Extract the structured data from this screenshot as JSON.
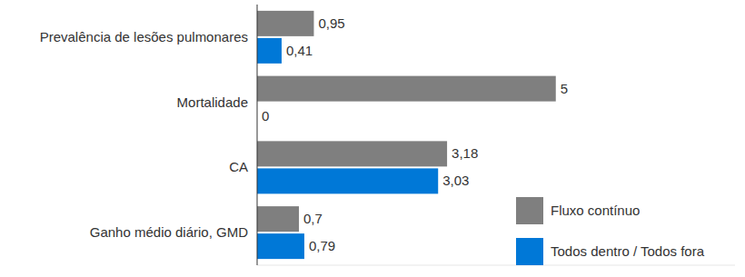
{
  "chart_data": {
    "type": "bar",
    "orientation": "horizontal",
    "categories": [
      "Prevalência de lesões pulmonares",
      "Mortalidade",
      "CA",
      "Ganho médio diário, GMD"
    ],
    "series": [
      {
        "name": "Fluxo contínuo",
        "color": "#7f7f7f",
        "values": [
          0.95,
          5,
          3.18,
          0.7
        ],
        "value_labels": [
          "0,95",
          "5",
          "3,18",
          "0,7"
        ]
      },
      {
        "name": "Todos dentro / Todos fora",
        "color": "#0078d7",
        "values": [
          0.41,
          0,
          3.03,
          0.79
        ],
        "value_labels": [
          "0,41",
          "0",
          "3,03",
          "0,79"
        ]
      }
    ],
    "xlim": [
      0,
      8
    ],
    "data_labels": true,
    "tick_labels": "y",
    "grid": false,
    "legend": "lower right"
  }
}
